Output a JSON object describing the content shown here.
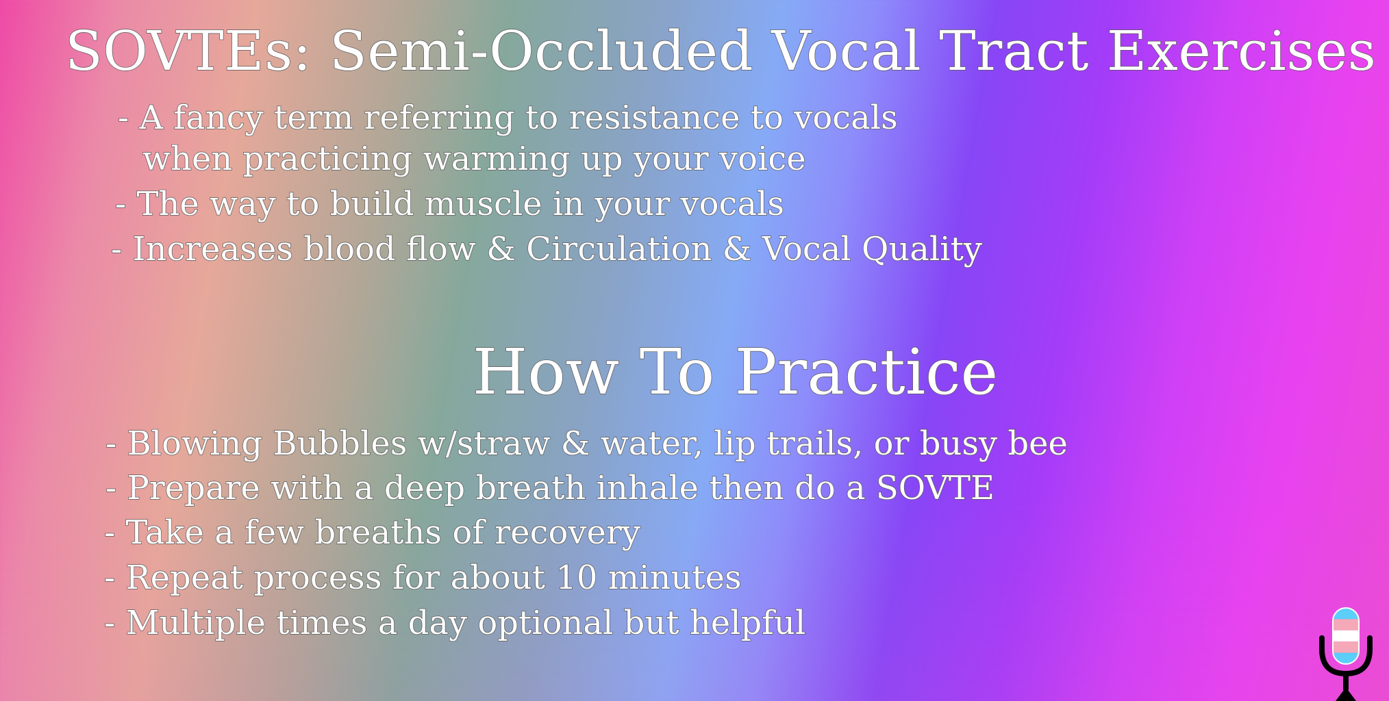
{
  "title": "SOVTEs: Semi-Occluded Vocal Tract Exercises",
  "definition": {
    "lines": [
      "- A fancy term referring to resistance to vocals",
      "when practicing warming up your voice",
      "- The way to build muscle in your vocals",
      "- Increases blood flow & Circulation & Vocal Quality"
    ]
  },
  "practice": {
    "heading": "How To Practice",
    "lines": [
      "- Blowing Bubbles w/straw & water, lip trails, or busy bee",
      "- Prepare with a deep breath inhale then do a SOVTE",
      "- Take a few breaths of recovery",
      "- Repeat process for about 10 minutes",
      "- Multiple times a day optional but helpful"
    ]
  },
  "logo": {
    "icon": "microphone-icon",
    "colors": [
      "#5bcefa",
      "#f5a9b8",
      "#ffffff",
      "#f5a9b8",
      "#5bcefa"
    ],
    "stand_color": "#000000"
  }
}
